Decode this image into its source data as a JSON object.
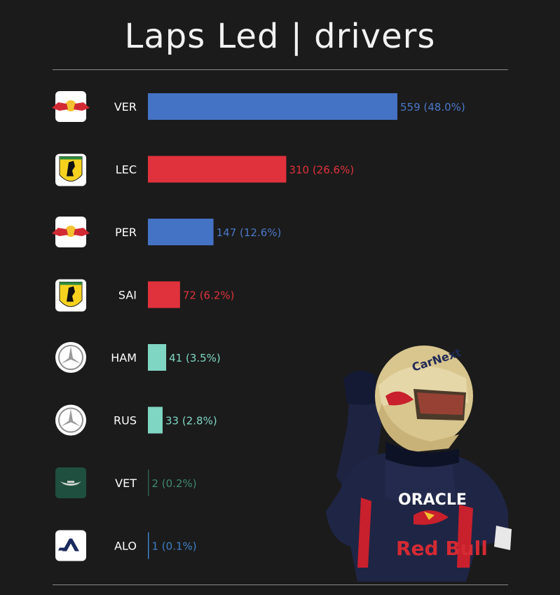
{
  "chart_data": {
    "type": "bar",
    "orientation": "horizontal",
    "title": "Laps Led | drivers",
    "categories": [
      "VER",
      "LEC",
      "PER",
      "SAI",
      "HAM",
      "RUS",
      "VET",
      "ALO"
    ],
    "values": [
      559,
      310,
      147,
      72,
      41,
      33,
      2,
      1
    ],
    "value_labels": [
      "559 (48.0%)",
      "310 (26.6%)",
      "147 (12.6%)",
      "72 (6.2%)",
      "41 (3.5%)",
      "33 (2.8%)",
      "2 (0.2%)",
      "1 (0.1%)"
    ],
    "teams": [
      "red-bull",
      "ferrari",
      "red-bull",
      "ferrari",
      "mercedes",
      "mercedes",
      "aston-martin",
      "alpine"
    ],
    "colors": [
      "#4472c4",
      "#e0323c",
      "#4472c4",
      "#e0323c",
      "#7fd6c2",
      "#7fd6c2",
      "#2e5d4b",
      "#3f7fc6"
    ],
    "label_colors": [
      "#4a78c8",
      "#e0323c",
      "#4a78c8",
      "#e0323c",
      "#7fd6c2",
      "#7fd6c2",
      "#3f8a6e",
      "#3f7fc6"
    ],
    "xlim": [
      0,
      559
    ],
    "grid": false,
    "legend": "none"
  },
  "icons": {
    "red-bull": "red-bull-logo-icon",
    "ferrari": "ferrari-logo-icon",
    "mercedes": "mercedes-logo-icon",
    "aston-martin": "aston-martin-logo-icon",
    "alpine": "alpine-logo-icon"
  },
  "photo": {
    "helmet_text": "CarNext",
    "sponsor_text": "Red Bull",
    "suit_text": "ORACLE"
  }
}
